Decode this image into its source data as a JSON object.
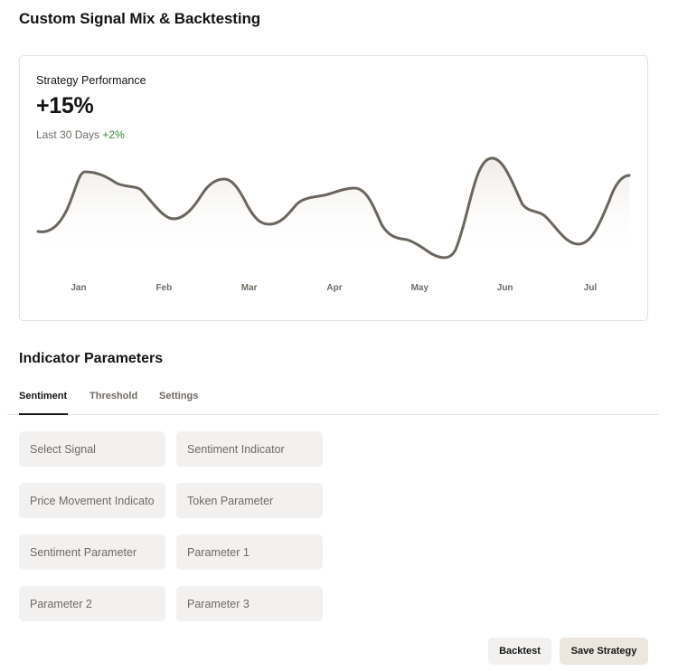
{
  "page": {
    "title": "Custom Signal Mix & Backtesting"
  },
  "performance": {
    "label": "Strategy Performance",
    "value": "+15%",
    "period": "Last 30 Days",
    "delta": "+2%"
  },
  "chart_data": {
    "type": "area",
    "x": [
      "Jan",
      "Feb",
      "Mar",
      "Apr",
      "May",
      "Jun",
      "Jul"
    ],
    "line_color": "#6b655e"
  },
  "indicators": {
    "title": "Indicator Parameters",
    "tabs": [
      "Sentiment",
      "Threshold",
      "Settings"
    ],
    "active_tab": "Sentiment",
    "fields": [
      {
        "placeholder": "Select Signal",
        "value": ""
      },
      {
        "placeholder": "Sentiment Indicator",
        "value": ""
      },
      {
        "placeholder": "Price Movement Indicator",
        "value": ""
      },
      {
        "placeholder": "Token Parameter",
        "value": ""
      },
      {
        "placeholder": "Sentiment Parameter",
        "value": ""
      },
      {
        "placeholder": "Parameter 1",
        "value": ""
      },
      {
        "placeholder": "Parameter 2",
        "value": ""
      },
      {
        "placeholder": "Parameter 3",
        "value": ""
      }
    ]
  },
  "actions": {
    "backtest_label": "Backtest",
    "save_label": "Save Strategy"
  }
}
